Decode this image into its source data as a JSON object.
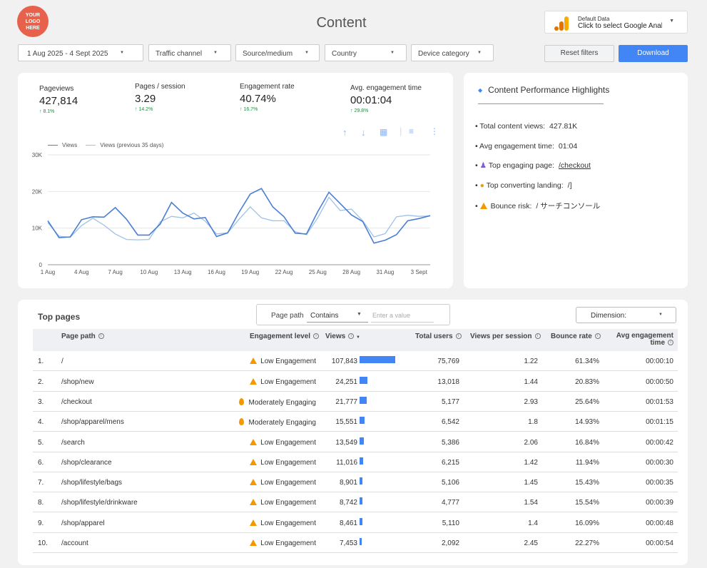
{
  "header": {
    "logo_text": "YOUR\nLOGO\nHERE",
    "title": "Content",
    "data_source": {
      "label": "Default Data",
      "value": "Click to select Google Analytics"
    }
  },
  "filters": {
    "date_range": "1 Aug 2025 - 4 Sept 2025",
    "traffic_channel": "Traffic channel",
    "source_medium": "Source/medium",
    "country": "Country",
    "device_category": "Device category",
    "reset_label": "Reset filters",
    "download_label": "Download"
  },
  "kpis": [
    {
      "label": "Pageviews",
      "value": "427,814",
      "change": "↑ 8.1%"
    },
    {
      "label": "Pages / session",
      "value": "3.29",
      "change": "↑ 14.2%"
    },
    {
      "label": "Engagement rate",
      "value": "40.74%",
      "change": "↑ 16.7%"
    },
    {
      "label": "Avg. engagement time",
      "value": "00:01:04",
      "change": "↑ 29.8%"
    }
  ],
  "chart_data": {
    "type": "line",
    "x": [
      "1 Aug",
      "2 Aug",
      "3 Aug",
      "4 Aug",
      "5 Aug",
      "6 Aug",
      "7 Aug",
      "8 Aug",
      "9 Aug",
      "10 Aug",
      "11 Aug",
      "12 Aug",
      "13 Aug",
      "14 Aug",
      "15 Aug",
      "16 Aug",
      "17 Aug",
      "18 Aug",
      "19 Aug",
      "20 Aug",
      "21 Aug",
      "22 Aug",
      "23 Aug",
      "24 Aug",
      "25 Aug",
      "26 Aug",
      "27 Aug",
      "28 Aug",
      "29 Aug",
      "30 Aug",
      "31 Aug",
      "1 Sept",
      "2 Sept",
      "3 Sept",
      "4 Sept"
    ],
    "tick_labels": [
      "1 Aug",
      "4 Aug",
      "7 Aug",
      "10 Aug",
      "13 Aug",
      "16 Aug",
      "19 Aug",
      "22 Aug",
      "25 Aug",
      "28 Aug",
      "31 Aug",
      "3 Sept"
    ],
    "series": [
      {
        "name": "Views",
        "values": [
          12000,
          7400,
          7600,
          12300,
          13100,
          13000,
          15600,
          12400,
          8100,
          8100,
          11100,
          17000,
          14100,
          12500,
          12900,
          7700,
          8700,
          14300,
          19300,
          20800,
          15800,
          13100,
          8600,
          8400,
          14500,
          19800,
          16700,
          13600,
          11800,
          5900,
          6700,
          8200,
          12000,
          12600,
          13400
        ]
      },
      {
        "name": "Views (previous 35 days)",
        "values": [
          11500,
          7800,
          7500,
          10700,
          12700,
          10800,
          8400,
          6900,
          6800,
          6900,
          11700,
          13200,
          12800,
          14100,
          11900,
          8400,
          8700,
          12400,
          15800,
          12800,
          12000,
          12000,
          9000,
          8200,
          12800,
          18400,
          14800,
          15200,
          12000,
          7600,
          8500,
          13100,
          13500,
          13200,
          13300
        ]
      }
    ],
    "yticks": [
      "0",
      "10K",
      "20K",
      "30K"
    ],
    "ylim": [
      0,
      30000
    ],
    "legend_position": "top-left",
    "grid": true,
    "colors": {
      "Views": "#4a7fd4",
      "Views (previous 35 days)": "#9ec1ea"
    }
  },
  "highlights": {
    "title": "Content Performance Highlights",
    "items": [
      {
        "label": "Total content views:",
        "value": "427.81K"
      },
      {
        "label": "Avg engagement time:",
        "value": "01:04"
      },
      {
        "label": "Top engaging page:",
        "value": "/checkout"
      },
      {
        "label": "Top converting landing:",
        "value": "/]"
      },
      {
        "label": "Bounce risk:",
        "value": "/   サーチコンソール"
      }
    ]
  },
  "top_pages": {
    "title": "Top pages",
    "page_path_label": "Page path",
    "match_type": "Contains",
    "value_placeholder": "Enter a value",
    "dimension_label": "Dimension:",
    "columns": [
      "Page path",
      "Engagement level",
      "Views",
      "Total users",
      "Views per session",
      "Bounce rate",
      "Avg engagement time"
    ],
    "sort_indicator": "▼",
    "rows": [
      {
        "n": "1.",
        "path": "/",
        "level": "Low Engagement",
        "views": "107,843",
        "views_num": 107843,
        "users": "75,769",
        "vps": "1.22",
        "bounce": "61.34%",
        "time": "00:00:10"
      },
      {
        "n": "2.",
        "path": "/shop/new",
        "level": "Low Engagement",
        "views": "24,251",
        "views_num": 24251,
        "users": "13,018",
        "vps": "1.44",
        "bounce": "20.83%",
        "time": "00:00:50"
      },
      {
        "n": "3.",
        "path": "/checkout",
        "level": "Moderately Engaging",
        "views": "21,777",
        "views_num": 21777,
        "users": "5,177",
        "vps": "2.93",
        "bounce": "25.64%",
        "time": "00:01:53"
      },
      {
        "n": "4.",
        "path": "/shop/apparel/mens",
        "level": "Moderately Engaging",
        "views": "15,551",
        "views_num": 15551,
        "users": "6,542",
        "vps": "1.8",
        "bounce": "14.93%",
        "time": "00:01:15"
      },
      {
        "n": "5.",
        "path": "/search",
        "level": "Low Engagement",
        "views": "13,549",
        "views_num": 13549,
        "users": "5,386",
        "vps": "2.06",
        "bounce": "16.84%",
        "time": "00:00:42"
      },
      {
        "n": "6.",
        "path": "/shop/clearance",
        "level": "Low Engagement",
        "views": "11,016",
        "views_num": 11016,
        "users": "6,215",
        "vps": "1.42",
        "bounce": "11.94%",
        "time": "00:00:30"
      },
      {
        "n": "7.",
        "path": "/shop/lifestyle/bags",
        "level": "Low Engagement",
        "views": "8,901",
        "views_num": 8901,
        "users": "5,106",
        "vps": "1.45",
        "bounce": "15.43%",
        "time": "00:00:35"
      },
      {
        "n": "8.",
        "path": "/shop/lifestyle/drinkware",
        "level": "Low Engagement",
        "views": "8,742",
        "views_num": 8742,
        "users": "4,777",
        "vps": "1.54",
        "bounce": "15.54%",
        "time": "00:00:39"
      },
      {
        "n": "9.",
        "path": "/shop/apparel",
        "level": "Low Engagement",
        "views": "8,461",
        "views_num": 8461,
        "users": "5,110",
        "vps": "1.4",
        "bounce": "16.09%",
        "time": "00:00:48"
      },
      {
        "n": "10.",
        "path": "/account",
        "level": "Low Engagement",
        "views": "7,453",
        "views_num": 7453,
        "users": "2,092",
        "vps": "2.45",
        "bounce": "22.27%",
        "time": "00:00:54"
      }
    ]
  }
}
